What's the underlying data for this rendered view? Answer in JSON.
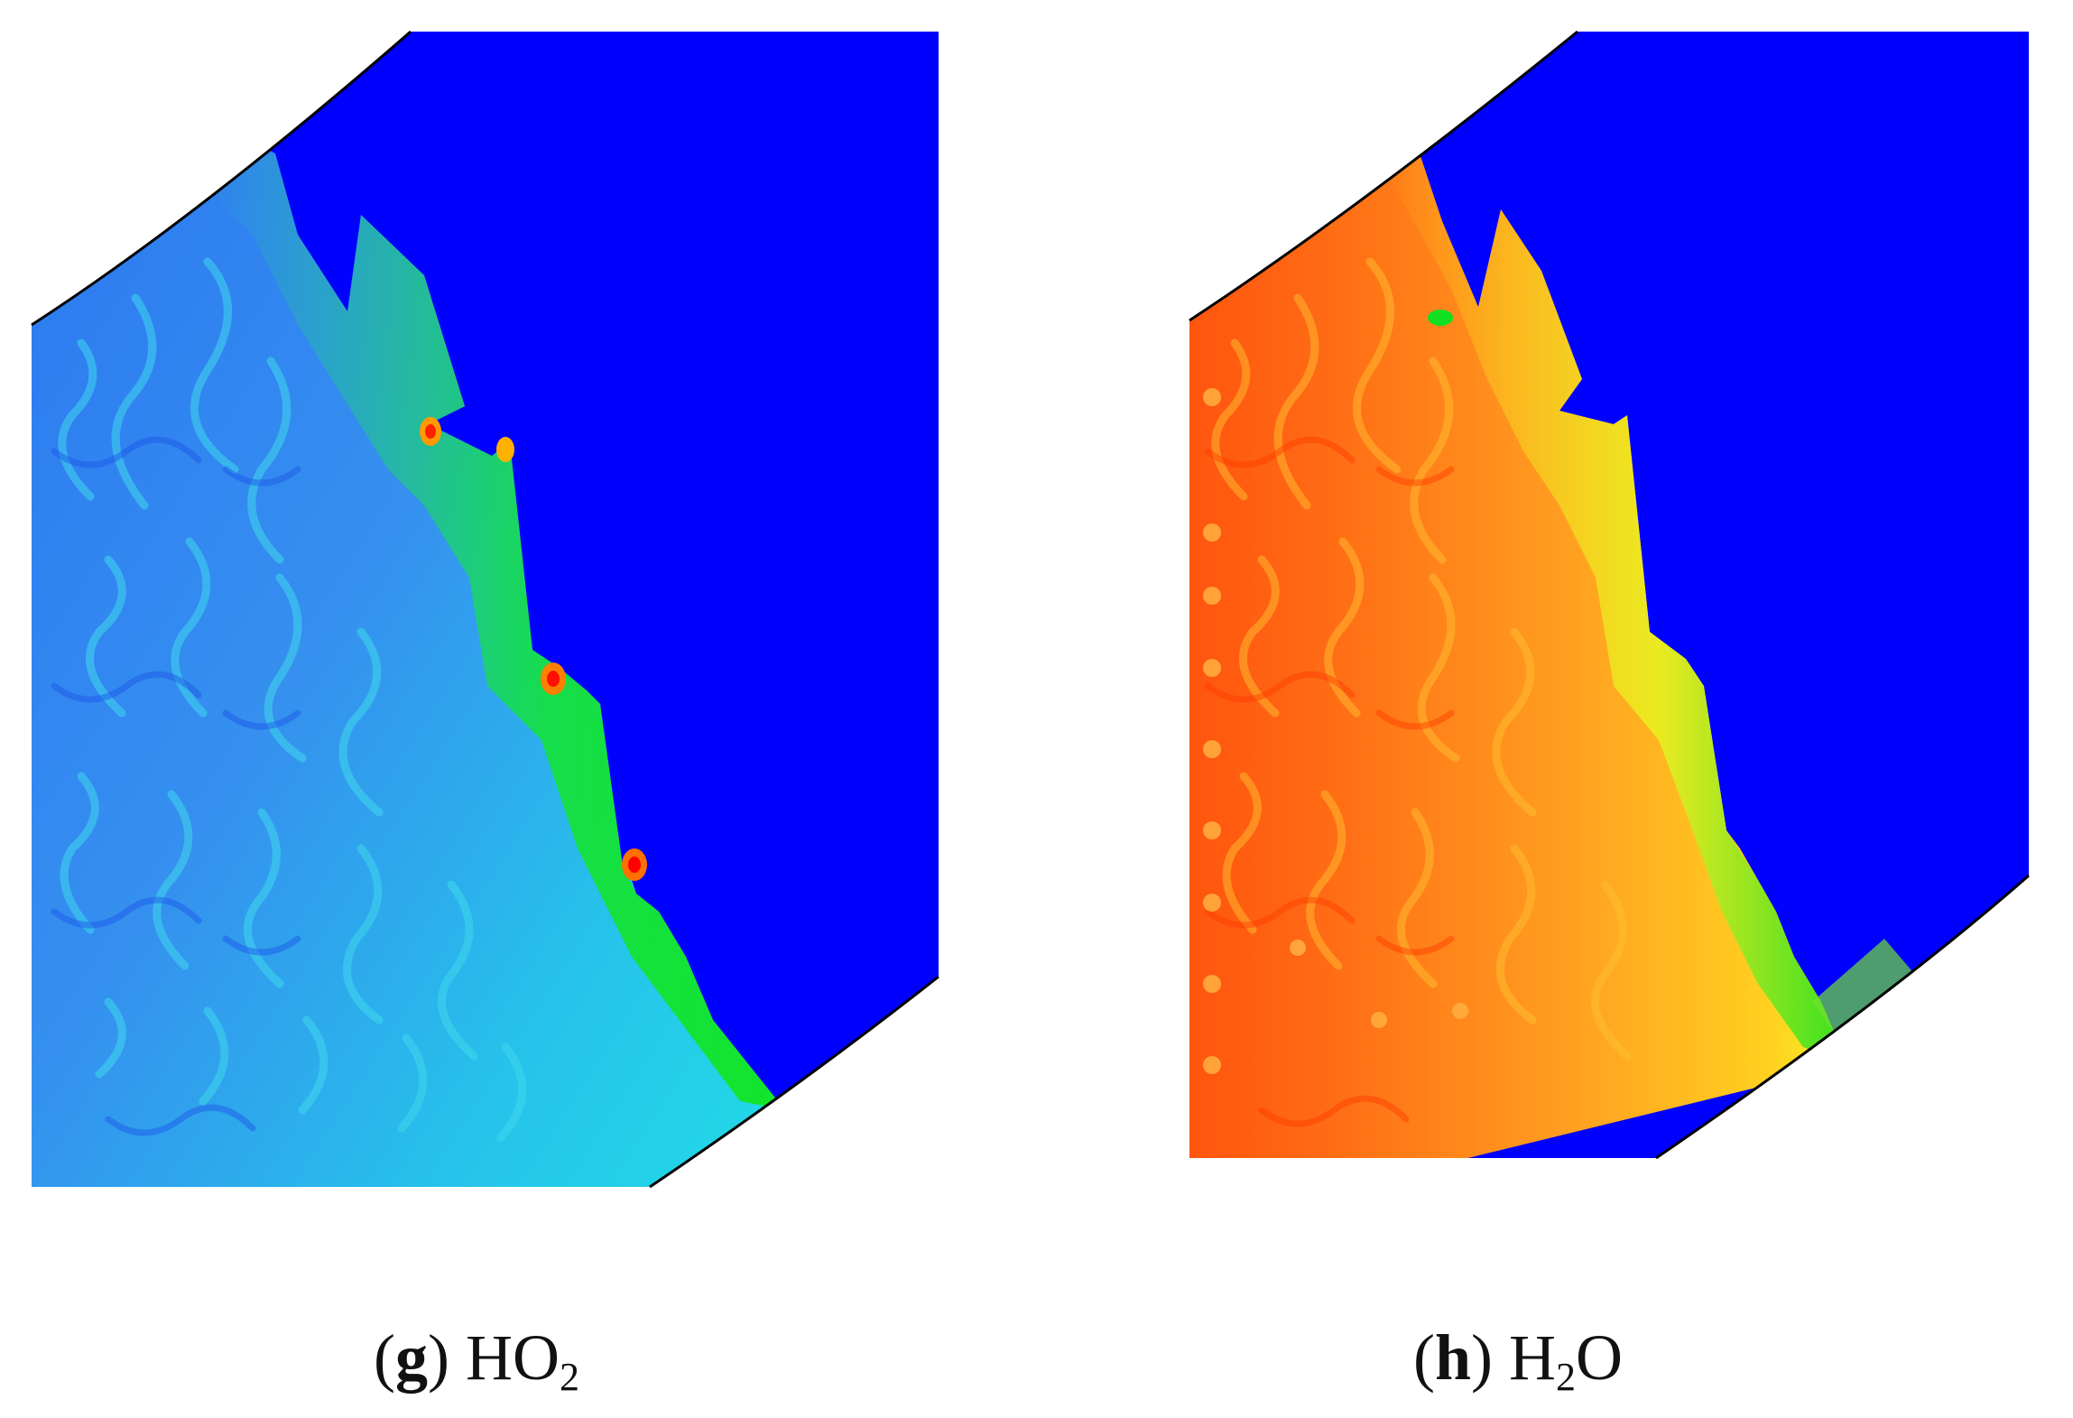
{
  "figures": [
    {
      "id": "g",
      "letter": "g",
      "species_prefix": "HO",
      "species_sub": "2",
      "species_suffix": "",
      "colors": {
        "unburnt": "#0000ff",
        "base": "#2a6ff0",
        "mid": "#20c8e0",
        "front": "#10e020",
        "hot": "#ff2000"
      }
    },
    {
      "id": "h",
      "letter": "h",
      "species_prefix": "H",
      "species_sub": "2",
      "species_suffix": "O",
      "colors": {
        "unburnt": "#0000ff",
        "base": "#ff4a0a",
        "mid": "#ffa020",
        "front": "#ffe820",
        "hot": "#10e020"
      }
    }
  ]
}
